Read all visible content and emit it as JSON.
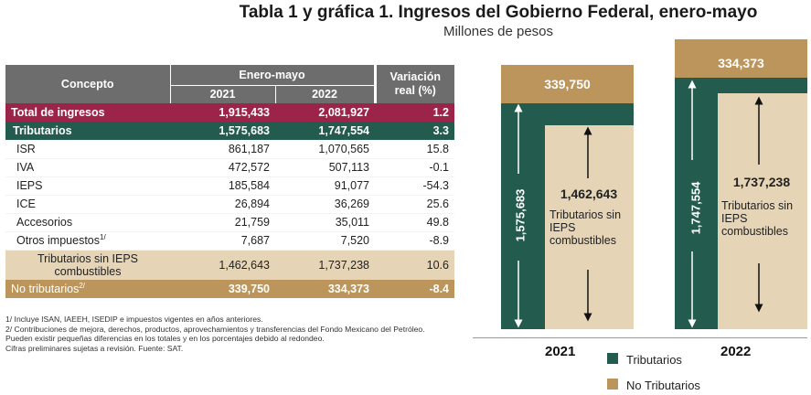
{
  "title": "Tabla 1 y gráfica 1. Ingresos del Gobierno Federal, enero-mayo",
  "subtitle": "Millones de pesos",
  "table": {
    "headers": {
      "concepto": "Concepto",
      "period": "Enero-mayo",
      "year1": "2021",
      "year2": "2022",
      "variation_line1": "Variación",
      "variation_line2": "real  (%)"
    },
    "rows": {
      "total": {
        "label": "Total de ingresos",
        "v2021": "1,915,433",
        "v2022": "2,081,927",
        "var": "1.2"
      },
      "trib": {
        "label": "Tributarios",
        "v2021": "1,575,683",
        "v2022": "1,747,554",
        "var": "3.3"
      },
      "isr": {
        "label": "ISR",
        "v2021": "861,187",
        "v2022": "1,070,565",
        "var": "15.8"
      },
      "iva": {
        "label": "IVA",
        "v2021": "472,572",
        "v2022": "507,113",
        "var": "-0.1"
      },
      "ieps": {
        "label": "IEPS",
        "v2021": "185,584",
        "v2022": "91,077",
        "var": "-54.3"
      },
      "ice": {
        "label": "ICE",
        "v2021": "26,894",
        "v2022": "36,269",
        "var": "25.6"
      },
      "accesorios": {
        "label": "Accesorios",
        "v2021": "21,759",
        "v2022": "35,011",
        "var": "49.8"
      },
      "otros": {
        "label": "Otros impuestos",
        "sup": "1/",
        "v2021": "7,687",
        "v2022": "7,520",
        "var": "-8.9"
      },
      "sinieps": {
        "label": "Tributarios sin IEPS combustibles",
        "v2021": "1,462,643",
        "v2022": "1,737,238",
        "var": "10.6"
      },
      "notrib": {
        "label": "No tributarios",
        "sup": "2/",
        "v2021": "339,750",
        "v2022": "334,373",
        "var": "-8.4"
      }
    }
  },
  "notes": [
    "1/ Incluye ISAN, IAEEH, ISEDIP e impuestos vigentes en años anteriores.",
    "2/ Contribuciones de mejora, derechos, productos, aprovechamientos y transferencias del Fondo Mexicano del Petróleo.",
    "Pueden existir pequeñas diferencias en los totales y en los porcentajes debido al redondeo.",
    "Cifras preliminares sujetas a revisión. Fuente: SAT."
  ],
  "colors": {
    "tributarios": "#235b4e",
    "no_tributarios": "#bc955c",
    "sin_ieps": "#e5d5b6",
    "total": "#9d2449",
    "header": "#6d6d6d"
  },
  "chart_data": {
    "type": "bar",
    "categories": [
      "2021",
      "2022"
    ],
    "series": [
      {
        "name": "Tributarios",
        "values": [
          1575683,
          1747554
        ]
      },
      {
        "name": "No Tributarios",
        "values": [
          339750,
          334373
        ]
      }
    ],
    "inner": {
      "label": "Tributarios sin IEPS combustibles",
      "values": [
        1462643,
        1737238
      ]
    },
    "labels": {
      "trib_2021": "1,575,683",
      "trib_2022": "1,747,554",
      "notrib_2021": "339,750",
      "notrib_2022": "334,373",
      "sinieps_2021": "1,462,643",
      "sinieps_2022": "1,737,238",
      "sinieps_text": "Tributarios sin IEPS combustibles"
    },
    "legend": [
      "Tributarios",
      "No Tributarios"
    ],
    "legend_placement": "bottom"
  }
}
